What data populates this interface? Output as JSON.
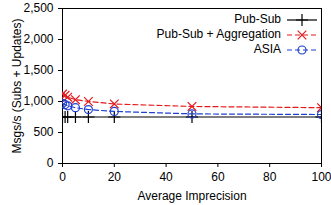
{
  "chart_data": {
    "type": "line",
    "x_label": "Average Imprecision",
    "y_label": "Msgs/s (Subs + Updates)",
    "xlim": [
      0,
      100
    ],
    "xticks": [
      0,
      20,
      40,
      60,
      80,
      100
    ],
    "ylim": [
      0,
      2500
    ],
    "yticks": [
      0,
      500,
      1000,
      1500,
      2000,
      2500
    ],
    "legend": "top-right",
    "x": [
      0,
      1,
      2,
      5,
      10,
      20,
      50,
      100
    ],
    "series": [
      {
        "name": "Pub-Sub",
        "color": "#000000",
        "marker": "plus",
        "line_style": "solid",
        "values": [
          750,
          750,
          750,
          750,
          750,
          750,
          750,
          750
        ]
      },
      {
        "name": "Pub-Sub + Aggregation",
        "color": "#e41a1c",
        "marker": "times",
        "line_style": "dashed",
        "values": [
          1120,
          1100,
          1070,
          1030,
          1000,
          960,
          920,
          900
        ]
      },
      {
        "name": "ASIA",
        "color": "#1f3fd0",
        "marker": "circle",
        "line_style": "dashed",
        "values": [
          970,
          950,
          930,
          900,
          870,
          840,
          800,
          790
        ]
      }
    ]
  }
}
